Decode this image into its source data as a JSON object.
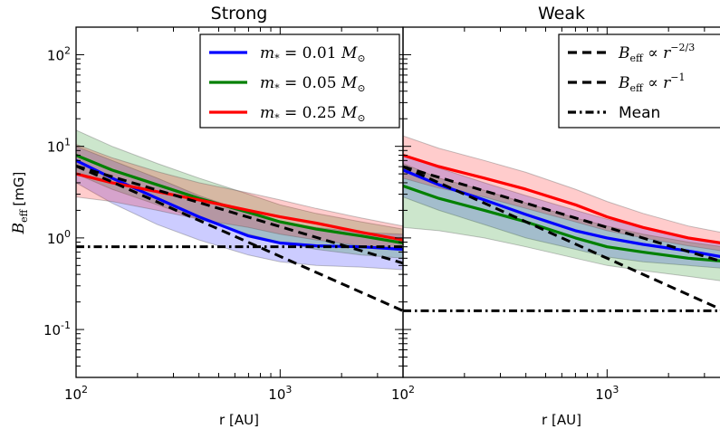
{
  "chart_data": [
    {
      "type": "line",
      "title": "Strong",
      "xlabel": "r [AU]",
      "ylabel_main": "B",
      "ylabel_sub": "eff",
      "ylabel_unit": "[mG]",
      "xscale": "log",
      "yscale": "log",
      "xlim": [
        100,
        4000
      ],
      "ylim": [
        0.03,
        200
      ],
      "grid": false,
      "x_ticks": [
        {
          "base": "10",
          "exp": "2"
        },
        {
          "base": "10",
          "exp": "3"
        }
      ],
      "y_ticks": [
        {
          "base": "10",
          "exp": "-1"
        },
        {
          "base": "10",
          "exp": "0"
        },
        {
          "base": "10",
          "exp": "1"
        },
        {
          "base": "10",
          "exp": "2"
        }
      ],
      "legend_position": "top-right",
      "legend": [
        {
          "prefix": "m",
          "sub": "*",
          "mid": " = 0.01 ",
          "unit": "M",
          "unitsub": "⊙"
        },
        {
          "prefix": "m",
          "sub": "*",
          "mid": " = 0.05 ",
          "unit": "M",
          "unitsub": "⊙"
        },
        {
          "prefix": "m",
          "sub": "*",
          "mid": " = 0.25 ",
          "unit": "M",
          "unitsub": "⊙"
        }
      ],
      "series": [
        {
          "color": "#0000ff",
          "band_color": "#0000ff",
          "x": [
            100,
            150,
            250,
            400,
            700,
            1000,
            1500,
            2500,
            4000
          ],
          "y": [
            7.0,
            4.5,
            2.7,
            1.7,
            1.05,
            0.88,
            0.82,
            0.8,
            0.75
          ],
          "low": [
            4.0,
            2.4,
            1.4,
            0.95,
            0.65,
            0.55,
            0.5,
            0.48,
            0.45
          ],
          "high": [
            10.0,
            7.0,
            4.5,
            2.9,
            1.9,
            1.5,
            1.3,
            1.15,
            1.1
          ]
        },
        {
          "color": "#008000",
          "band_color": "#008000",
          "x": [
            100,
            150,
            250,
            400,
            700,
            1000,
            1500,
            2500,
            4000
          ],
          "y": [
            8.0,
            5.5,
            3.8,
            2.7,
            1.9,
            1.5,
            1.25,
            1.05,
            0.88
          ],
          "low": [
            5.0,
            3.4,
            2.3,
            1.6,
            1.1,
            0.9,
            0.75,
            0.65,
            0.6
          ],
          "high": [
            15.0,
            10.0,
            6.5,
            4.5,
            3.0,
            2.3,
            1.85,
            1.5,
            1.25
          ]
        },
        {
          "color": "#ff0000",
          "band_color": "#ff0000",
          "x": [
            100,
            150,
            250,
            400,
            700,
            1000,
            1500,
            2500,
            4000
          ],
          "y": [
            5.0,
            4.0,
            3.2,
            2.6,
            2.0,
            1.7,
            1.45,
            1.15,
            0.95
          ],
          "low": [
            2.8,
            2.5,
            2.0,
            1.6,
            1.3,
            1.1,
            0.95,
            0.82,
            0.72
          ],
          "high": [
            10.5,
            7.5,
            5.3,
            4.0,
            3.1,
            2.6,
            2.1,
            1.65,
            1.35
          ]
        }
      ],
      "reference_lines": [
        {
          "style": "dashed",
          "x": [
            100,
            4000
          ],
          "y": [
            6.1,
            0.53
          ]
        },
        {
          "style": "dashed",
          "x": [
            100,
            4000
          ],
          "y": [
            6.1,
            0.16
          ]
        },
        {
          "style": "dashdot",
          "x": [
            100,
            4000
          ],
          "y": [
            0.8,
            0.8
          ]
        }
      ]
    },
    {
      "type": "line",
      "title": "Weak",
      "xlabel": "r [AU]",
      "xscale": "log",
      "yscale": "log",
      "xlim": [
        100,
        4000
      ],
      "ylim": [
        0.03,
        200
      ],
      "grid": false,
      "x_ticks": [
        {
          "base": "10",
          "exp": "2"
        },
        {
          "base": "10",
          "exp": "3"
        }
      ],
      "legend_position": "top-right",
      "legend": [
        {
          "math": "B",
          "sub": "eff",
          "rel": " ∝ ",
          "var": "r",
          "exp": "−2/3"
        },
        {
          "math": "B",
          "sub": "eff",
          "rel": " ∝ ",
          "var": "r",
          "exp": "−1"
        },
        {
          "text": "Mean"
        }
      ],
      "series": [
        {
          "color": "#0000ff",
          "band_color": "#0000ff",
          "x": [
            100,
            150,
            250,
            400,
            700,
            1000,
            1500,
            2500,
            4000
          ],
          "y": [
            5.5,
            3.8,
            2.6,
            1.8,
            1.2,
            1.0,
            0.85,
            0.72,
            0.6
          ],
          "low": [
            2.8,
            2.0,
            1.4,
            1.0,
            0.75,
            0.62,
            0.55,
            0.5,
            0.46
          ],
          "high": [
            8.0,
            5.8,
            4.0,
            2.9,
            2.0,
            1.6,
            1.3,
            1.0,
            0.82
          ]
        },
        {
          "color": "#008000",
          "band_color": "#008000",
          "x": [
            100,
            150,
            250,
            400,
            700,
            1000,
            1500,
            2500,
            4000
          ],
          "y": [
            3.7,
            2.7,
            2.0,
            1.5,
            1.0,
            0.8,
            0.7,
            0.6,
            0.55
          ],
          "low": [
            1.3,
            1.2,
            1.0,
            0.8,
            0.6,
            0.5,
            0.44,
            0.38,
            0.33
          ],
          "high": [
            6.5,
            4.5,
            3.3,
            2.4,
            1.65,
            1.35,
            1.1,
            0.9,
            0.78
          ]
        },
        {
          "color": "#ff0000",
          "band_color": "#ff0000",
          "x": [
            100,
            150,
            250,
            400,
            700,
            1000,
            1500,
            2500,
            4000
          ],
          "y": [
            8.0,
            6.0,
            4.5,
            3.4,
            2.3,
            1.7,
            1.3,
            1.0,
            0.85
          ],
          "low": [
            4.5,
            3.5,
            2.8,
            2.1,
            1.5,
            1.2,
            1.0,
            0.82,
            0.7
          ],
          "high": [
            13.0,
            9.5,
            7.0,
            5.2,
            3.4,
            2.5,
            1.85,
            1.35,
            1.1
          ]
        }
      ],
      "reference_lines": [
        {
          "style": "dashed",
          "x": [
            100,
            4000
          ],
          "y": [
            6.0,
            0.52
          ]
        },
        {
          "style": "dashed",
          "x": [
            100,
            4000
          ],
          "y": [
            6.0,
            0.15
          ]
        },
        {
          "style": "dashdot",
          "x": [
            100,
            4000
          ],
          "y": [
            0.16,
            0.16
          ]
        }
      ]
    }
  ]
}
